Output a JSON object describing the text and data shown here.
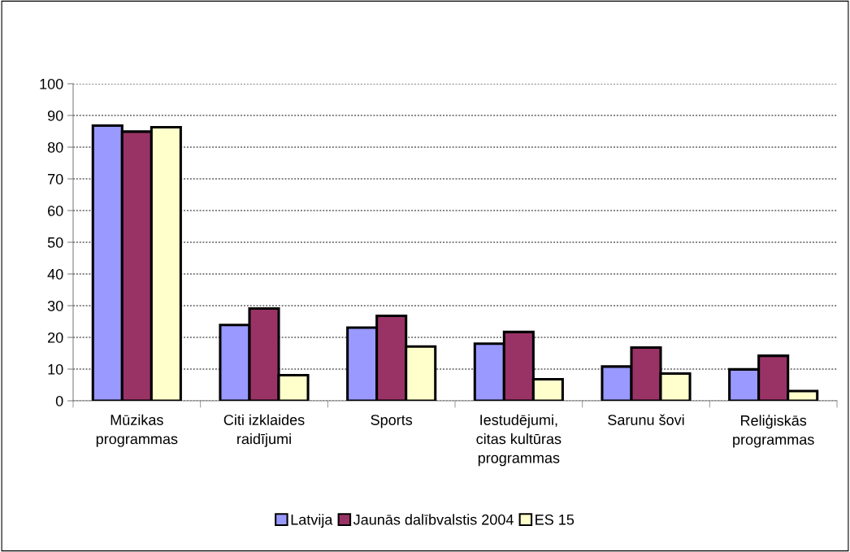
{
  "chart_data": {
    "type": "bar",
    "categories": [
      "Mūzikas\nprogrammas",
      "Citi izklaides\nraidījumi",
      "Sports",
      "Iestudējumi,\ncitas kultūras\nprogrammas",
      "Sarunu šovi",
      "Reliģiskās\nprogrammas"
    ],
    "series": [
      {
        "name": "Latvija",
        "color": "#9999ff",
        "values": [
          86.8,
          23.9,
          23.1,
          18.0,
          10.8,
          9.9
        ]
      },
      {
        "name": "Jaunās dalībvalstis 2004",
        "color": "#993366",
        "values": [
          84.9,
          29.1,
          26.8,
          21.7,
          16.8,
          14.2
        ]
      },
      {
        "name": "ES 15",
        "color": "#ffffcc",
        "values": [
          86.3,
          8.1,
          17.1,
          6.8,
          8.6,
          3.1
        ]
      }
    ],
    "ylim": [
      0,
      100
    ],
    "yticks": [
      0,
      10,
      20,
      30,
      40,
      50,
      60,
      70,
      80,
      90,
      100
    ],
    "grid": "y",
    "legend": "bottom"
  }
}
